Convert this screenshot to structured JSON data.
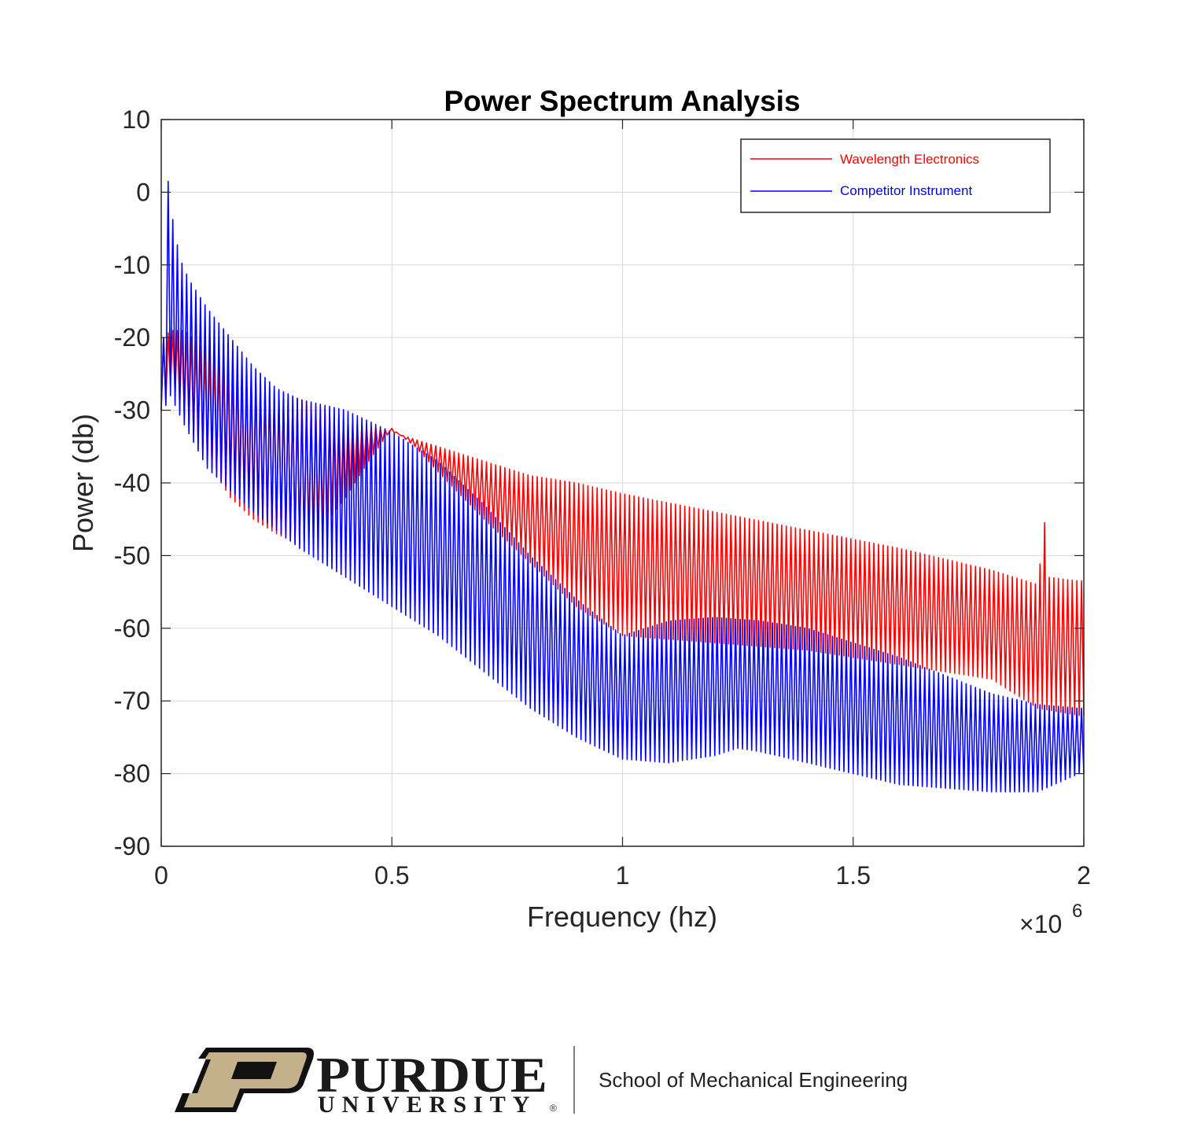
{
  "chart_data": {
    "type": "line",
    "title": "Power Spectrum Analysis",
    "xlabel": "Frequency (hz)",
    "ylabel": "Power (db)",
    "x_exponent_base": "×10",
    "x_exponent_power": "6",
    "xlim": [
      0,
      2000000
    ],
    "ylim": [
      -90,
      10
    ],
    "x_ticks": [
      0,
      500000,
      1000000,
      1500000,
      2000000
    ],
    "x_tick_labels": [
      "0",
      "0.5",
      "1",
      "1.5",
      "2"
    ],
    "y_ticks": [
      10,
      0,
      -10,
      -20,
      -30,
      -40,
      -50,
      -60,
      -70,
      -80,
      -90
    ],
    "y_tick_labels": [
      "10",
      "0",
      "-10",
      "-20",
      "-30",
      "-40",
      "-50",
      "-60",
      "-70",
      "-80",
      "-90"
    ],
    "grid": true,
    "legend_position": "top-right",
    "comb_period_hz": 10000,
    "series": [
      {
        "name": "Wavelength Electronics",
        "color": "#ff0000",
        "upper_envelope": {
          "x": [
            5000,
            20000,
            50000,
            100000,
            200000,
            300000,
            400000,
            500000,
            600000,
            700000,
            800000,
            900000,
            1000000,
            1200000,
            1400000,
            1600000,
            1800000,
            1900000,
            1915000,
            1925000,
            1990000
          ],
          "y": [
            -20,
            -19,
            -19,
            -22,
            -26,
            -28.5,
            -31,
            -33,
            -35,
            -37,
            -39,
            -40,
            -41.5,
            -44,
            -46.5,
            -49,
            -52,
            -54,
            -45.5,
            -53,
            -53.5
          ]
        },
        "lower_envelope": {
          "x": [
            5000,
            20000,
            50000,
            100000,
            150000,
            200000,
            250000,
            300000,
            350000,
            400000,
            450000,
            500000,
            550000,
            600000,
            700000,
            800000,
            900000,
            1000000,
            1200000,
            1400000,
            1600000,
            1800000,
            1850000,
            1900000,
            1990000
          ],
          "y": [
            -30,
            -26.5,
            -31,
            -37,
            -42,
            -45,
            -47,
            -48.5,
            -46,
            -42,
            -37,
            -32.5,
            -35,
            -38.5,
            -45,
            -51,
            -57,
            -61,
            -62,
            -63,
            -65,
            -67,
            -69,
            -71,
            -72
          ]
        }
      },
      {
        "name": "Competitor Instrument",
        "color": "#0000ff",
        "upper_envelope": {
          "x": [
            5000,
            10000,
            20000,
            40000,
            60000,
            80000,
            100000,
            150000,
            200000,
            250000,
            300000,
            400000,
            500000,
            600000,
            700000,
            800000,
            900000,
            1000000,
            1100000,
            1200000,
            1300000,
            1400000,
            1500000,
            1600000,
            1700000,
            1800000,
            1900000,
            1990000
          ],
          "y": [
            -20,
            5,
            -2,
            -9,
            -12,
            -14,
            -16,
            -20,
            -24,
            -27,
            -28.5,
            -30,
            -33,
            -37,
            -43,
            -50,
            -56,
            -61,
            -59,
            -58.5,
            -59,
            -60,
            -62,
            -64,
            -66.5,
            -69,
            -70.5,
            -71
          ]
        },
        "lower_envelope": {
          "x": [
            5000,
            20000,
            50000,
            100000,
            200000,
            300000,
            400000,
            500000,
            600000,
            700000,
            800000,
            900000,
            1000000,
            1100000,
            1200000,
            1250000,
            1300000,
            1400000,
            1500000,
            1600000,
            1700000,
            1800000,
            1900000,
            1990000
          ],
          "y": [
            -30,
            -28,
            -32,
            -38,
            -44,
            -49,
            -53,
            -57,
            -61,
            -66,
            -71,
            -75,
            -78,
            -78.5,
            -77.5,
            -76.5,
            -77,
            -78.5,
            -80,
            -81.5,
            -82,
            -82.5,
            -82.5,
            -80
          ]
        }
      }
    ]
  },
  "footer": {
    "logo_letter": "P",
    "brand_name": "PURDUE",
    "brand_sub": "UNIVERSITY",
    "registered_mark": "®",
    "department": "School of Mechanical Engineering",
    "logo_gold": "#c4b08a",
    "logo_dark": "#111111"
  }
}
